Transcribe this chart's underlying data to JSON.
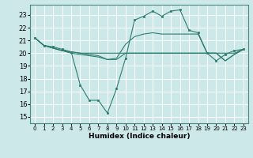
{
  "background_color": "#cce8e8",
  "plot_bg_color": "#cce8e8",
  "grid_color": "#ffffff",
  "line_color": "#2d7d6e",
  "marker_color": "#2d7d6e",
  "xlabel": "Humidex (Indice chaleur)",
  "ylim": [
    14.5,
    23.8
  ],
  "xlim": [
    -0.5,
    23.5
  ],
  "yticks": [
    15,
    16,
    17,
    18,
    19,
    20,
    21,
    22,
    23
  ],
  "xticks": [
    0,
    1,
    2,
    3,
    4,
    5,
    6,
    7,
    8,
    9,
    10,
    11,
    12,
    13,
    14,
    15,
    16,
    17,
    18,
    19,
    20,
    21,
    22,
    23
  ],
  "lines": [
    {
      "x": [
        0,
        1,
        2,
        3,
        4,
        5,
        6,
        7,
        8,
        9,
        10,
        11,
        12,
        13,
        14,
        15,
        16,
        17,
        18,
        19,
        20,
        21,
        22,
        23
      ],
      "y": [
        21.2,
        20.6,
        20.5,
        20.3,
        20.1,
        17.5,
        16.3,
        16.3,
        15.3,
        17.2,
        19.6,
        22.6,
        22.9,
        23.3,
        22.9,
        23.3,
        23.4,
        21.8,
        21.6,
        20.0,
        19.4,
        19.9,
        20.2,
        20.3
      ],
      "marker": true
    },
    {
      "x": [
        0,
        1,
        2,
        3,
        4,
        5,
        6,
        7,
        8,
        9,
        10,
        11,
        12,
        13,
        14,
        15,
        16,
        17,
        18,
        19,
        20,
        21,
        22,
        23
      ],
      "y": [
        21.2,
        20.6,
        20.4,
        20.2,
        20.1,
        20.0,
        20.0,
        20.0,
        20.0,
        20.0,
        20.0,
        20.0,
        20.0,
        20.0,
        20.0,
        20.0,
        20.0,
        20.0,
        20.0,
        20.0,
        20.0,
        20.0,
        20.0,
        20.3
      ],
      "marker": false
    },
    {
      "x": [
        0,
        1,
        2,
        3,
        4,
        5,
        6,
        7,
        8,
        9,
        10,
        11,
        12,
        13,
        14,
        15,
        16,
        17,
        18,
        19,
        20,
        21,
        22,
        23
      ],
      "y": [
        21.2,
        20.6,
        20.4,
        20.2,
        20.0,
        19.9,
        19.8,
        19.7,
        19.5,
        19.5,
        20.0,
        20.0,
        20.0,
        20.0,
        20.0,
        20.0,
        20.0,
        20.0,
        20.0,
        20.0,
        20.0,
        19.4,
        19.9,
        20.3
      ],
      "marker": false
    },
    {
      "x": [
        0,
        1,
        2,
        3,
        4,
        5,
        6,
        7,
        8,
        9,
        10,
        11,
        12,
        13,
        14,
        15,
        16,
        17,
        18,
        19,
        20,
        21,
        22,
        23
      ],
      "y": [
        21.2,
        20.6,
        20.4,
        20.2,
        20.1,
        20.0,
        19.9,
        19.8,
        19.5,
        19.6,
        20.7,
        21.3,
        21.5,
        21.6,
        21.5,
        21.5,
        21.5,
        21.5,
        21.5,
        20.0,
        20.0,
        19.4,
        19.9,
        20.3
      ],
      "marker": false
    }
  ]
}
